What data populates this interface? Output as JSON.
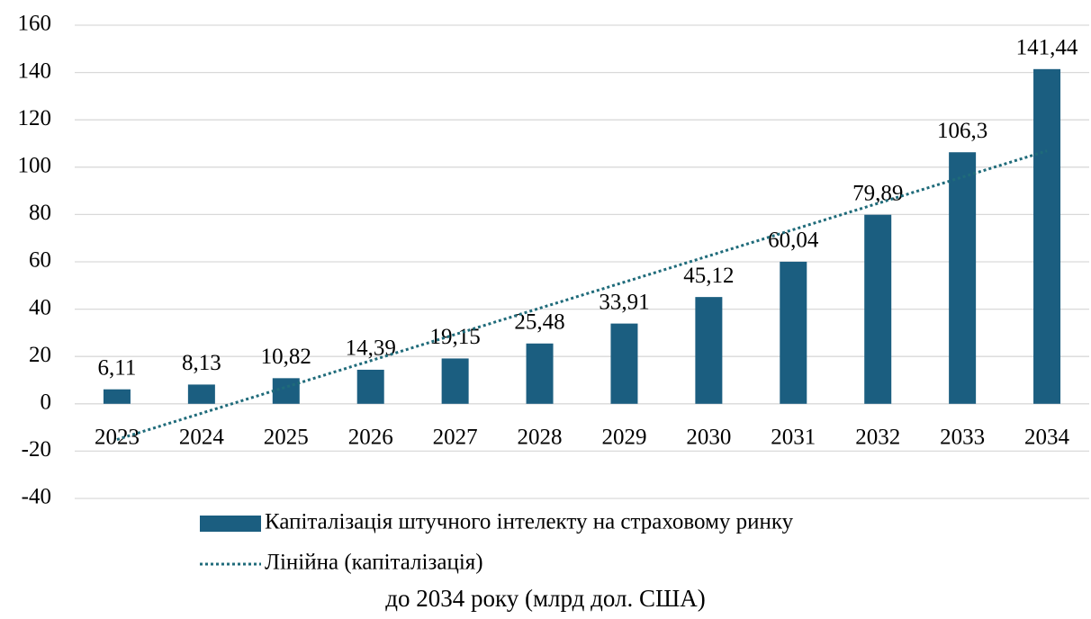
{
  "chart_data": {
    "type": "bar",
    "title": "до 2034 року (млрд дол. США)",
    "categories": [
      "2023",
      "2024",
      "2025",
      "2026",
      "2027",
      "2028",
      "2029",
      "2030",
      "2031",
      "2032",
      "2033",
      "2034"
    ],
    "series": [
      {
        "name": "Капіталізація штучного інтелекту на страховому ринку",
        "color": "#1b5e80",
        "values": [
          6.11,
          8.13,
          10.82,
          14.39,
          19.15,
          25.48,
          33.91,
          45.12,
          60.04,
          79.89,
          106.3,
          141.44
        ],
        "value_labels": [
          "6,11",
          "8,13",
          "10,82",
          "14,39",
          "19,15",
          "25,48",
          "33,91",
          "45,12",
          "60,04",
          "79,89",
          "106,3",
          "141,44"
        ]
      },
      {
        "name": "Лінійна (капіталізація)",
        "type": "line",
        "color": "#1f6b7a",
        "values": [
          -15.1,
          -4.0,
          7.1,
          18.2,
          29.3,
          40.4,
          51.4,
          62.5,
          73.6,
          84.7,
          95.8,
          106.9
        ]
      }
    ],
    "ylim": [
      -40,
      160
    ],
    "yticks": [
      -40,
      -20,
      0,
      20,
      40,
      60,
      80,
      100,
      120,
      140,
      160
    ],
    "grid": true
  }
}
